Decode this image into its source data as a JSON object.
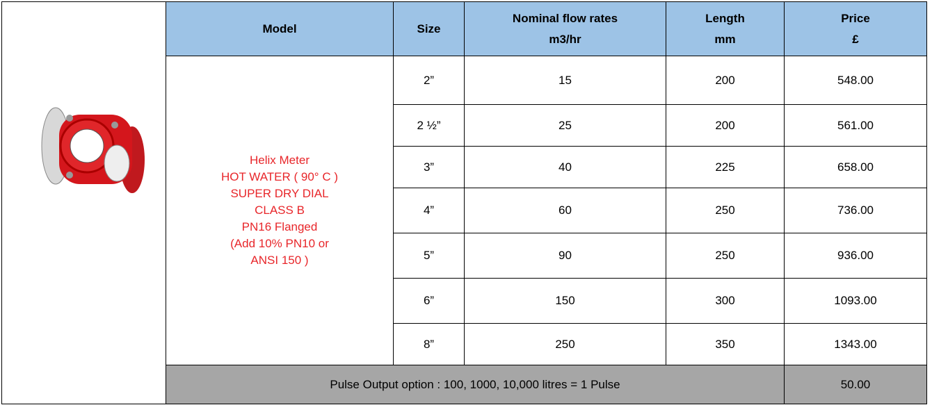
{
  "header": [
    [
      "Model"
    ],
    [
      "Size"
    ],
    [
      "Nominal flow rates",
      "m3/hr"
    ],
    [
      "Length",
      "mm"
    ],
    [
      "Price",
      "£"
    ]
  ],
  "model": [
    "Helix Meter",
    "HOT WATER ( 90° C )",
    "SUPER DRY DIAL",
    "CLASS B",
    "PN16 Flanged",
    "(Add 10% PN10 or",
    "ANSI 150 )"
  ],
  "rows": [
    [
      "2”",
      "15",
      "200",
      "548.00"
    ],
    [
      "2 ½”",
      "25",
      "200",
      "561.00"
    ],
    [
      "3”",
      "40",
      "225",
      "658.00"
    ],
    [
      "4”",
      "60",
      "250",
      "736.00"
    ],
    [
      "5”",
      "90",
      "250",
      "936.00"
    ],
    [
      "6”",
      "150",
      "300",
      "1093.00"
    ],
    [
      "8”",
      "250",
      "350",
      "1343.00"
    ]
  ],
  "pulse": {
    "text": "Pulse Output option : 100, 1000, 10,000 litres = 1 Pulse",
    "price": "50.00"
  }
}
